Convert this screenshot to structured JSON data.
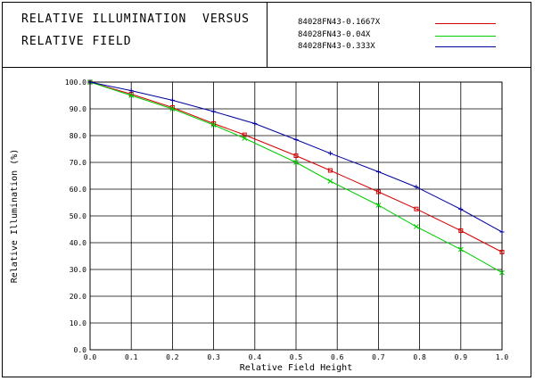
{
  "header": {
    "title_line_1": "RELATIVE ILLUMINATION  VERSUS",
    "title_line_2": "RELATIVE FIELD"
  },
  "legend": [
    {
      "label": "84028FN43-0.1667X",
      "color": "#d40000"
    },
    {
      "label": "84028FN43-0.04X",
      "color": "#00cc00"
    },
    {
      "label": "84028FN43-0.333X",
      "color": "#00009c"
    }
  ],
  "chart_data": {
    "type": "line",
    "xlabel": "Relative Field Height",
    "ylabel": "Relative Illumination (%)",
    "xlim": [
      0.0,
      1.0
    ],
    "ylim": [
      0.0,
      100.0
    ],
    "xticks": [
      "0.0",
      "0.1",
      "0.2",
      "0.3",
      "0.4",
      "0.5",
      "0.6",
      "0.7",
      "0.8",
      "0.9",
      "1.0"
    ],
    "yticks": [
      "0.0",
      "10.0",
      "20.0",
      "30.0",
      "40.0",
      "50.0",
      "60.0",
      "70.0",
      "80.0",
      "90.0",
      "100.0"
    ],
    "grid": true,
    "series": [
      {
        "name": "84028FN43-0.1667X",
        "color": "#d40000",
        "marker": "square",
        "x": [
          0.0,
          0.1,
          0.2,
          0.3,
          0.375,
          0.5,
          0.583,
          0.7,
          0.792,
          0.9,
          1.0
        ],
        "y": [
          100.0,
          95.5,
          90.5,
          84.5,
          80.3,
          72.5,
          67.0,
          59.0,
          52.6,
          44.5,
          36.5
        ]
      },
      {
        "name": "84028FN43-0.04X",
        "color": "#00cc00",
        "marker": "cross",
        "x": [
          0.0,
          0.1,
          0.2,
          0.3,
          0.375,
          0.5,
          0.583,
          0.7,
          0.792,
          0.9,
          1.0
        ],
        "y": [
          100.0,
          95.0,
          90.0,
          84.0,
          79.0,
          70.0,
          63.0,
          54.0,
          46.0,
          37.5,
          28.8
        ]
      },
      {
        "name": "84028FN43-0.333X",
        "color": "#00009c",
        "marker": "plus",
        "x": [
          0.0,
          0.1,
          0.2,
          0.3,
          0.4,
          0.5,
          0.583,
          0.7,
          0.792,
          0.9,
          1.0
        ],
        "y": [
          100.0,
          96.8,
          93.2,
          89.0,
          84.5,
          78.5,
          73.4,
          66.5,
          60.8,
          52.5,
          44.0
        ]
      }
    ]
  }
}
